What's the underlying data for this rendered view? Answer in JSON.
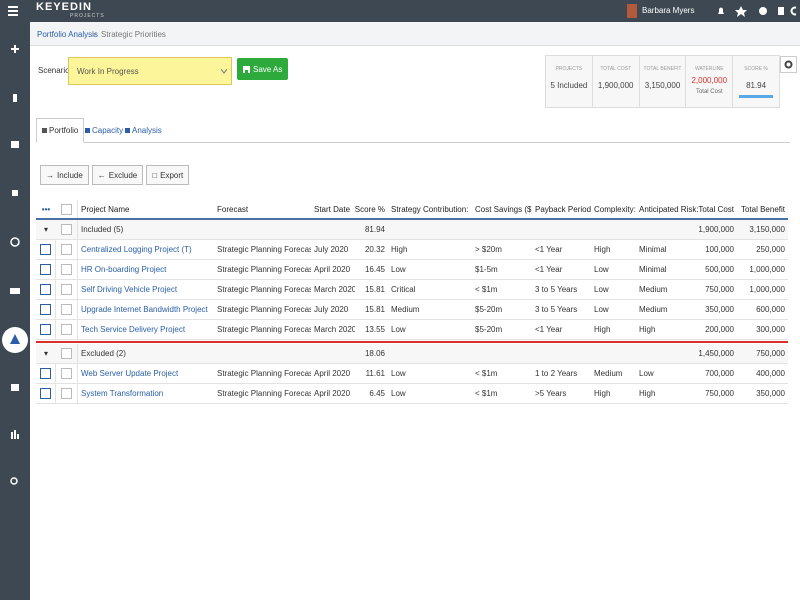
{
  "topbar": {
    "logo": "KEYEDIN",
    "logo_sub": "PROJECTS",
    "user": "Barbara Myers"
  },
  "breadcrumb": {
    "parent": "Portfolio Analysis",
    "separator": ">",
    "current": "Strategic Priorities"
  },
  "scenario": {
    "label": "Scenario:",
    "selected": "Work In Progress",
    "save_button": "Save As"
  },
  "summary": [
    {
      "label": "PROJECTS",
      "value": "5 Included"
    },
    {
      "label": "TOTAL COST",
      "value": "1,900,000"
    },
    {
      "label": "TOTAL BENEFIT",
      "value": "3,150,000"
    },
    {
      "label": "WATERLINE",
      "value": "2,000,000",
      "note": "Total Cost"
    },
    {
      "label": "SCORE %",
      "value": "81.94"
    }
  ],
  "tabs": [
    "Portfolio",
    "Capacity",
    "Analysis"
  ],
  "actions": [
    "Include",
    "Exclude",
    "Export"
  ],
  "table": {
    "columns": [
      "Project Name",
      "Forecast",
      "Start Date",
      "Score %",
      "Strategy Contribution:",
      "Cost Savings ($):",
      "Payback Period:",
      "Complexity:",
      "Anticipated Risk:",
      "Total Cost",
      "Total Benefit"
    ],
    "groups": [
      {
        "label": "Included (5)",
        "score": "81.94",
        "total_cost": "1,900,000",
        "total_benefit": "3,150,000",
        "rows": [
          [
            "Centralized Logging Project (T)",
            "Strategic Planning Forecast",
            "July 2020",
            "20.32",
            "High",
            "> $20m",
            "<1 Year",
            "High",
            "Minimal",
            "100,000",
            "250,000"
          ],
          [
            "HR On-boarding Project",
            "Strategic Planning Forecast",
            "April 2020",
            "16.45",
            "Low",
            "$1-5m",
            "<1 Year",
            "Low",
            "Minimal",
            "500,000",
            "1,000,000"
          ],
          [
            "Self Driving Vehicle Project",
            "Strategic Planning Forecast",
            "March 2020",
            "15.81",
            "Critical",
            "< $1m",
            "3 to 5 Years",
            "Low",
            "Medium",
            "750,000",
            "1,000,000"
          ],
          [
            "Upgrade Internet Bandwidth Project",
            "Strategic Planning Forecast",
            "July 2020",
            "15.81",
            "Medium",
            "$5-20m",
            "3 to 5 Years",
            "Low",
            "Medium",
            "350,000",
            "600,000"
          ],
          [
            "Tech Service Delivery Project",
            "Strategic Planning Forecast",
            "March 2020",
            "13.55",
            "Low",
            "$5-20m",
            "<1 Year",
            "High",
            "High",
            "200,000",
            "300,000"
          ]
        ]
      },
      {
        "label": "Excluded (2)",
        "score": "18.06",
        "total_cost": "1,450,000",
        "total_benefit": "750,000",
        "rows": [
          [
            "Web Server Update Project",
            "Strategic Planning Forecast",
            "April 2020",
            "11.61",
            "Low",
            "< $1m",
            "1 to 2 Years",
            "Medium",
            "Low",
            "700,000",
            "400,000"
          ],
          [
            "System Transformation",
            "Strategic Planning Forecast",
            "April 2020",
            "6.45",
            "Low",
            "< $1m",
            ">5 Years",
            "High",
            "High",
            "750,000",
            "350,000"
          ]
        ]
      }
    ]
  }
}
